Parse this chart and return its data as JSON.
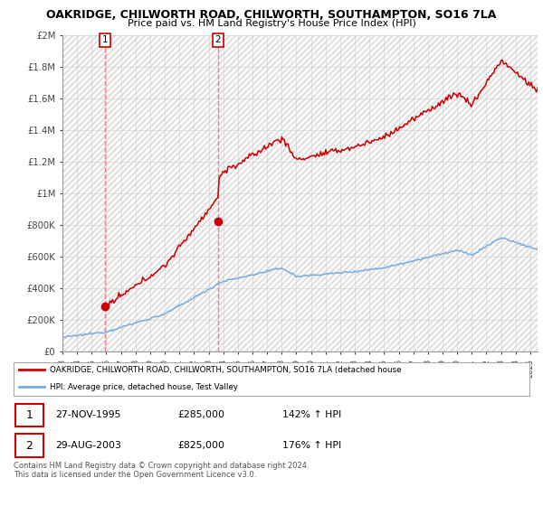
{
  "title": "OAKRIDGE, CHILWORTH ROAD, CHILWORTH, SOUTHAMPTON, SO16 7LA",
  "subtitle": "Price paid vs. HM Land Registry's House Price Index (HPI)",
  "sale1_label": "27-NOV-1995",
  "sale1_price": 285000,
  "sale1_t": 1995.9,
  "sale1_hpi_pct": "142% ↑ HPI",
  "sale2_label": "29-AUG-2003",
  "sale2_price": 825000,
  "sale2_t": 2003.65,
  "sale2_hpi_pct": "176% ↑ HPI",
  "legend_red": "OAKRIDGE, CHILWORTH ROAD, CHILWORTH, SOUTHAMPTON, SO16 7LA (detached house",
  "legend_blue": "HPI: Average price, detached house, Test Valley",
  "footnote": "Contains HM Land Registry data © Crown copyright and database right 2024.\nThis data is licensed under the Open Government Licence v3.0.",
  "red_color": "#cc0000",
  "blue_color": "#7aaddc",
  "dashed_color": "#e87070",
  "marker_color": "#cc0000",
  "grid_color": "#cccccc",
  "hatch_edgecolor": "#d8d8d8",
  "ylim_max": 2000000,
  "xlim_min": 1993,
  "xlim_max": 2025.5,
  "yticks": [
    0,
    200000,
    400000,
    600000,
    800000,
    1000000,
    1200000,
    1400000,
    1600000,
    1800000,
    2000000
  ],
  "ylabels": [
    "£0",
    "£200K",
    "£400K",
    "£600K",
    "£800K",
    "£1M",
    "£1.2M",
    "£1.4M",
    "£1.6M",
    "£1.8M",
    "£2M"
  ]
}
